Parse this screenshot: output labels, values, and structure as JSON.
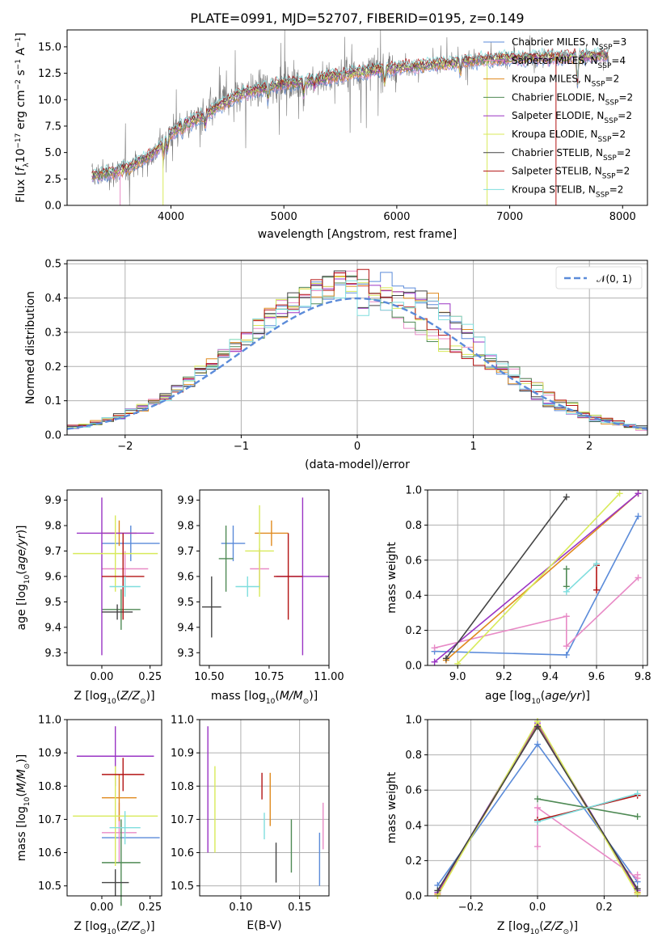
{
  "colors": {
    "Chabrier MILES": "#5b8bd9",
    "Salpeter MILES": "#e88ac6",
    "Kroupa MILES": "#e08a1e",
    "Chabrier ELODIE": "#4f8a55",
    "Salpeter ELODIE": "#9a34c4",
    "Kroupa ELODIE": "#d8ea5a",
    "Chabrier STELIB": "#444444",
    "Salpeter STELIB": "#b31313",
    "Kroupa STELIB": "#7fdede",
    "data": "#7a7a7a",
    "gauss": "#5b8bd9"
  },
  "chart_data": [
    {
      "id": "spectrum",
      "type": "line",
      "title": "PLATE=0991, MJD=52707, FIBERID=0195, z=0.149",
      "xlabel": "wavelength [Angstrom, rest frame]",
      "ylabel": "Flux [f_λ 10^-17 erg cm^-2 s^-1 A^-1]",
      "xlim": [
        3080,
        8220
      ],
      "ylim": [
        0,
        16.6
      ],
      "xticks": [
        "4000",
        "5000",
        "6000",
        "7000",
        "8000"
      ],
      "yticks": [
        "0.0",
        "2.5",
        "5.0",
        "7.5",
        "10.0",
        "12.5",
        "15.0"
      ],
      "grid": false,
      "legend_position": "top-right",
      "continuum": {
        "x": [
          3300,
          3400,
          3500,
          3600,
          3700,
          3800,
          3900,
          4000,
          4100,
          4200,
          4300,
          4400,
          4500,
          4600,
          4700,
          4800,
          4900,
          5000,
          5100,
          5200,
          5300,
          5400,
          5500,
          5600,
          5700,
          5800,
          5900,
          6000,
          6100,
          6200,
          6300,
          6400,
          6500,
          6600,
          6700,
          6800,
          6900,
          7000,
          7100,
          7200,
          7300,
          7400,
          7500,
          7600,
          7700,
          7800,
          7900,
          8000
        ],
        "y": [
          2.8,
          3.0,
          3.1,
          3.5,
          4.0,
          4.6,
          5.5,
          6.8,
          7.6,
          8.0,
          8.5,
          9.2,
          9.9,
          10.4,
          10.8,
          11.0,
          11.3,
          11.5,
          11.6,
          11.7,
          11.9,
          12.1,
          12.3,
          12.5,
          12.6,
          12.8,
          12.9,
          13.0,
          13.1,
          13.2,
          13.3,
          13.4,
          13.5,
          13.6,
          13.7,
          13.8,
          13.8,
          13.9,
          13.9,
          14.0,
          14.0,
          14.0,
          14.0,
          14.1,
          14.1,
          14.2,
          14.2,
          14.2
        ]
      },
      "legend": [
        {
          "label": "Chabrier MILES, N",
          "sub": "SSP",
          "tail": "=3",
          "key": "Chabrier MILES"
        },
        {
          "label": "Salpeter MILES, N",
          "sub": "SSP",
          "tail": "=4",
          "key": "Salpeter MILES"
        },
        {
          "label": "Kroupa MILES, N",
          "sub": "SSP",
          "tail": "=2",
          "key": "Kroupa MILES"
        },
        {
          "label": "Chabrier ELODIE, N",
          "sub": "SSP",
          "tail": "=2",
          "key": "Chabrier ELODIE"
        },
        {
          "label": "Salpeter ELODIE, N",
          "sub": "SSP",
          "tail": "=2",
          "key": "Salpeter ELODIE"
        },
        {
          "label": "Kroupa ELODIE, N",
          "sub": "SSP",
          "tail": "=2",
          "key": "Kroupa ELODIE"
        },
        {
          "label": "Chabrier STELIB, N",
          "sub": "SSP",
          "tail": "=2",
          "key": "Chabrier STELIB"
        },
        {
          "label": "Salpeter STELIB, N",
          "sub": "SSP",
          "tail": "=2",
          "key": "Salpeter STELIB"
        },
        {
          "label": "Kroupa STELIB, N",
          "sub": "SSP",
          "tail": "=2",
          "key": "Kroupa STELIB"
        }
      ]
    },
    {
      "id": "residuals",
      "type": "histogram",
      "xlabel": "(data-model)/error",
      "ylabel": "Normed distribution",
      "xlim": [
        -2.5,
        2.5
      ],
      "ylim": [
        0,
        0.51
      ],
      "xticks": [
        "−2",
        "−1",
        "0",
        "1",
        "2"
      ],
      "yticks": [
        "0.0",
        "0.1",
        "0.2",
        "0.3",
        "0.4",
        "0.5"
      ],
      "grid": true,
      "legend_position": "top-right",
      "gauss_label": "𝒩(0, 1)",
      "bin_width": 0.1
    },
    {
      "id": "z-age",
      "type": "errorbar",
      "xlabel": "Z [log10(Z/Z⊙)]",
      "ylabel": "age [log10(age/yr)]",
      "xlim": [
        -0.18,
        0.31
      ],
      "ylim": [
        9.25,
        9.94
      ],
      "xticks": [
        "0.00",
        "0.25"
      ],
      "yticks": [
        "9.3",
        "9.4",
        "9.5",
        "9.6",
        "9.7",
        "9.8",
        "9.9"
      ],
      "grid": false,
      "points": [
        {
          "key": "Chabrier MILES",
          "x": 0.15,
          "xerr": 0.15,
          "y": 9.73,
          "yerr": 0.07
        },
        {
          "key": "Salpeter MILES",
          "x": 0.12,
          "xerr": 0.12,
          "y": 9.63,
          "yerr": 0.07
        },
        {
          "key": "Kroupa MILES",
          "x": 0.09,
          "xerr": 0.09,
          "y": 9.77,
          "yerr": 0.05
        },
        {
          "key": "Chabrier ELODIE",
          "x": 0.1,
          "xerr": 0.1,
          "y": 9.47,
          "yerr": 0.08
        },
        {
          "key": "Salpeter ELODIE",
          "x": 0.07,
          "xerr": 0.2,
          "y": 9.77,
          "yerr": 0.0
        },
        {
          "key": "Salpeter ELODIE",
          "x": 0.0,
          "xerr": 0.0,
          "y": 9.6,
          "yerr": 0.31
        },
        {
          "key": "Kroupa ELODIE",
          "x": 0.07,
          "xerr": 0.22,
          "y": 9.69,
          "yerr": 0.15
        },
        {
          "key": "Chabrier STELIB",
          "x": 0.08,
          "xerr": 0.08,
          "y": 9.46,
          "yerr": 0.03
        },
        {
          "key": "Salpeter STELIB",
          "x": 0.11,
          "xerr": 0.11,
          "y": 9.6,
          "yerr": 0.17
        },
        {
          "key": "Kroupa STELIB",
          "x": 0.12,
          "xerr": 0.08,
          "y": 9.56,
          "yerr": 0.04
        }
      ]
    },
    {
      "id": "mass-age",
      "type": "errorbar",
      "xlabel": "mass [log10(M/M⊙)]",
      "ylabel": "",
      "xlim": [
        10.46,
        11.0
      ],
      "ylim": [
        9.25,
        9.94
      ],
      "xticks": [
        "10.50",
        "10.75",
        "11.00"
      ],
      "yticks": [
        "9.3",
        "9.4",
        "9.5",
        "9.6",
        "9.7",
        "9.8",
        "9.9"
      ],
      "grid": false,
      "points": [
        {
          "key": "Chabrier MILES",
          "x": 10.6,
          "xerr": 0.05,
          "y": 9.73,
          "yerr": 0.07
        },
        {
          "key": "Salpeter MILES",
          "x": 10.71,
          "xerr": 0.04,
          "y": 9.63,
          "yerr": 0.08
        },
        {
          "key": "Kroupa MILES",
          "x": 10.76,
          "xerr": 0.07,
          "y": 9.77,
          "yerr": 0.05
        },
        {
          "key": "Chabrier ELODIE",
          "x": 10.57,
          "xerr": 0.03,
          "y": 9.67,
          "yerr": 0.13
        },
        {
          "key": "Salpeter ELODIE",
          "x": 10.89,
          "xerr": 0.11,
          "y": 9.6,
          "yerr": 0.31
        },
        {
          "key": "Kroupa ELODIE",
          "x": 10.71,
          "xerr": 0.06,
          "y": 9.7,
          "yerr": 0.18
        },
        {
          "key": "Chabrier STELIB",
          "x": 10.51,
          "xerr": 0.04,
          "y": 9.48,
          "yerr": 0.12
        },
        {
          "key": "Salpeter STELIB",
          "x": 10.83,
          "xerr": 0.06,
          "y": 9.6,
          "yerr": 0.17
        },
        {
          "key": "Kroupa STELIB",
          "x": 10.66,
          "xerr": 0.05,
          "y": 9.56,
          "yerr": 0.04
        }
      ]
    },
    {
      "id": "age-weight",
      "type": "line",
      "xlabel": "age [log10(age/yr)]",
      "ylabel": "mass weight",
      "xlim": [
        8.87,
        9.82
      ],
      "ylim": [
        0,
        1
      ],
      "xticks": [
        "9.0",
        "9.2",
        "9.4",
        "9.6",
        "9.8"
      ],
      "yticks": [
        "0.0",
        "0.2",
        "0.4",
        "0.6",
        "0.8",
        "1.0"
      ],
      "grid": true,
      "series": [
        {
          "key": "Chabrier MILES",
          "x": [
            8.9,
            9.47,
            9.78
          ],
          "y": [
            0.08,
            0.06,
            0.85
          ]
        },
        {
          "key": "Salpeter MILES",
          "x": [
            8.9,
            9.47,
            9.47,
            9.78
          ],
          "y": [
            0.1,
            0.28,
            0.11,
            0.5
          ]
        },
        {
          "key": "Kroupa MILES",
          "x": [
            8.95,
            9.78
          ],
          "y": [
            0.03,
            0.98
          ]
        },
        {
          "key": "Chabrier ELODIE",
          "x": [
            9.47,
            9.47
          ],
          "y": [
            0.45,
            0.55
          ]
        },
        {
          "key": "Salpeter ELODIE",
          "x": [
            8.9,
            9.78
          ],
          "y": [
            0.02,
            0.98
          ]
        },
        {
          "key": "Kroupa ELODIE",
          "x": [
            9.0,
            9.7
          ],
          "y": [
            0.01,
            0.98
          ]
        },
        {
          "key": "Chabrier STELIB",
          "x": [
            8.95,
            9.47
          ],
          "y": [
            0.04,
            0.96
          ]
        },
        {
          "key": "Salpeter STELIB",
          "x": [
            9.6,
            9.6
          ],
          "y": [
            0.57,
            0.43
          ]
        },
        {
          "key": "Kroupa STELIB",
          "x": [
            9.47,
            9.6
          ],
          "y": [
            0.42,
            0.58
          ]
        }
      ]
    },
    {
      "id": "z-mass",
      "type": "errorbar",
      "xlabel": "Z [log10(Z/Z⊙)]",
      "ylabel": "mass [log10(M/M⊙)]",
      "xlim": [
        -0.18,
        0.31
      ],
      "ylim": [
        10.47,
        11.0
      ],
      "xticks": [
        "0.00",
        "0.25"
      ],
      "yticks": [
        "10.5",
        "10.6",
        "10.7",
        "10.8",
        "10.9",
        "11.0"
      ],
      "grid": false,
      "points": [
        {
          "key": "Chabrier MILES",
          "x": 0.15,
          "xerr": 0.15,
          "y": 10.645,
          "yerr": 0.0
        },
        {
          "key": "Salpeter MILES",
          "x": 0.09,
          "xerr": 0.09,
          "y": 10.66,
          "yerr": 0.09
        },
        {
          "key": "Kroupa MILES",
          "x": 0.09,
          "xerr": 0.09,
          "y": 10.765,
          "yerr": 0.07
        },
        {
          "key": "Chabrier ELODIE",
          "x": 0.1,
          "xerr": 0.1,
          "y": 10.57,
          "yerr": 0.13
        },
        {
          "key": "Salpeter ELODIE",
          "x": 0.07,
          "xerr": 0.2,
          "y": 10.89,
          "yerr": 0.09
        },
        {
          "key": "Kroupa ELODIE",
          "x": 0.07,
          "xerr": 0.22,
          "y": 10.71,
          "yerr": 0.15
        },
        {
          "key": "Chabrier STELIB",
          "x": 0.07,
          "xerr": 0.07,
          "y": 10.51,
          "yerr": 0.04
        },
        {
          "key": "Salpeter STELIB",
          "x": 0.11,
          "xerr": 0.11,
          "y": 10.835,
          "yerr": 0.05
        },
        {
          "key": "Kroupa STELIB",
          "x": 0.12,
          "xerr": 0.08,
          "y": 10.675,
          "yerr": 0.05
        }
      ]
    },
    {
      "id": "ebv-mass",
      "type": "errorbar",
      "xlabel": "E(B-V)",
      "ylabel": "",
      "xlim": [
        0.065,
        0.175
      ],
      "ylim": [
        10.47,
        11.0
      ],
      "xticks": [
        "0.10",
        "0.15"
      ],
      "yticks": [
        "10.5",
        "10.6",
        "10.7",
        "10.8",
        "10.9",
        "11.0"
      ],
      "grid": true,
      "points": [
        {
          "key": "Chabrier MILES",
          "x": 0.167,
          "y": 10.58,
          "yerr": 0.08
        },
        {
          "key": "Salpeter MILES",
          "x": 0.17,
          "y": 10.68,
          "yerr": 0.07
        },
        {
          "key": "Kroupa MILES",
          "x": 0.125,
          "y": 10.76,
          "yerr": 0.08
        },
        {
          "key": "Chabrier ELODIE",
          "x": 0.143,
          "y": 10.62,
          "yerr": 0.08
        },
        {
          "key": "Salpeter ELODIE",
          "x": 0.072,
          "y": 10.79,
          "yerr": 0.19
        },
        {
          "key": "Kroupa ELODIE",
          "x": 0.078,
          "y": 10.73,
          "yerr": 0.13
        },
        {
          "key": "Chabrier STELIB",
          "x": 0.13,
          "y": 10.57,
          "yerr": 0.06
        },
        {
          "key": "Salpeter STELIB",
          "x": 0.118,
          "y": 10.8,
          "yerr": 0.04
        },
        {
          "key": "Kroupa STELIB",
          "x": 0.12,
          "y": 10.68,
          "yerr": 0.04
        }
      ]
    },
    {
      "id": "z-weight",
      "type": "line",
      "xlabel": "Z [log10(Z/Z⊙)]",
      "ylabel": "mass weight",
      "xlim": [
        -0.33,
        0.33
      ],
      "ylim": [
        0,
        1
      ],
      "xticks": [
        "−0.2",
        "0.0",
        "0.2"
      ],
      "yticks": [
        "0.0",
        "0.2",
        "0.4",
        "0.6",
        "0.8",
        "1.0"
      ],
      "grid": true,
      "series": [
        {
          "key": "Chabrier MILES",
          "x": [
            -0.3,
            0.0,
            0.3
          ],
          "y": [
            0.06,
            0.86,
            0.08
          ]
        },
        {
          "key": "Salpeter MILES",
          "x": [
            0.0,
            0.0,
            0.3,
            0.3
          ],
          "y": [
            0.28,
            0.5,
            0.1,
            0.12
          ]
        },
        {
          "key": "Kroupa MILES",
          "x": [
            -0.3,
            0.0,
            0.3
          ],
          "y": [
            0.01,
            0.97,
            0.02
          ]
        },
        {
          "key": "Chabrier ELODIE",
          "x": [
            0.0,
            0.3
          ],
          "y": [
            0.55,
            0.45
          ]
        },
        {
          "key": "Salpeter ELODIE",
          "x": [
            -0.3,
            0.0,
            0.3
          ],
          "y": [
            0.02,
            0.98,
            0.03
          ]
        },
        {
          "key": "Kroupa ELODIE",
          "x": [
            -0.3,
            0.0,
            0.3
          ],
          "y": [
            0.0,
            0.99,
            0.01
          ]
        },
        {
          "key": "Chabrier STELIB",
          "x": [
            -0.3,
            0.0,
            0.3
          ],
          "y": [
            0.03,
            0.96,
            0.04
          ]
        },
        {
          "key": "Salpeter STELIB",
          "x": [
            0.0,
            0.3
          ],
          "y": [
            0.43,
            0.57
          ]
        },
        {
          "key": "Kroupa STELIB",
          "x": [
            0.0,
            0.3
          ],
          "y": [
            0.42,
            0.58
          ]
        }
      ]
    }
  ]
}
